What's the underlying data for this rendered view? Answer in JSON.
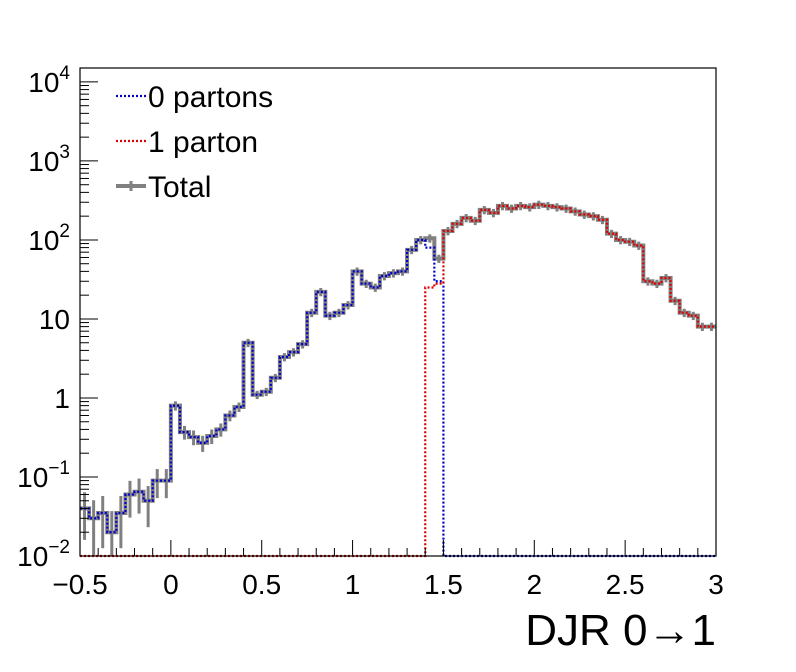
{
  "chart_data": {
    "type": "line",
    "xlabel": "DJR 0→1",
    "ylabel": "",
    "yscale": "log",
    "xlim": [
      -0.5,
      3.0
    ],
    "ylim": [
      0.01,
      15000
    ],
    "grid": false,
    "legend_position": "top-left",
    "bin_edges": [
      -0.5,
      -0.45,
      -0.4,
      -0.35,
      -0.3,
      -0.25,
      -0.2,
      -0.15,
      -0.1,
      -0.05,
      0.0,
      0.05,
      0.1,
      0.15,
      0.2,
      0.25,
      0.3,
      0.35,
      0.4,
      0.45,
      0.5,
      0.55,
      0.6,
      0.65,
      0.7,
      0.75,
      0.8,
      0.85,
      0.9,
      0.95,
      1.0,
      1.05,
      1.1,
      1.15,
      1.2,
      1.25,
      1.3,
      1.35,
      1.4,
      1.45,
      1.5,
      1.55,
      1.6,
      1.65,
      1.7,
      1.75,
      1.8,
      1.85,
      1.9,
      1.95,
      2.0,
      2.05,
      2.1,
      2.15,
      2.2,
      2.25,
      2.3,
      2.35,
      2.4,
      2.45,
      2.5,
      2.55,
      2.6,
      2.65,
      2.7,
      2.75,
      2.8,
      2.85,
      2.9,
      2.95,
      3.0
    ],
    "x_ticks": [
      {
        "value": -0.5,
        "label": "−0.5"
      },
      {
        "value": 0,
        "label": "0"
      },
      {
        "value": 0.5,
        "label": "0.5"
      },
      {
        "value": 1,
        "label": "1"
      },
      {
        "value": 1.5,
        "label": "1.5"
      },
      {
        "value": 2,
        "label": "2"
      },
      {
        "value": 2.5,
        "label": "2.5"
      },
      {
        "value": 3,
        "label": "3"
      }
    ],
    "y_ticks": [
      {
        "value": 0.01,
        "base": "10",
        "exp": "−2",
        "label": ""
      },
      {
        "value": 0.1,
        "base": "10",
        "exp": "−1",
        "label": ""
      },
      {
        "value": 1,
        "base": "",
        "exp": "",
        "label": "1"
      },
      {
        "value": 10,
        "base": "",
        "exp": "",
        "label": "10"
      },
      {
        "value": 100,
        "base": "10",
        "exp": "2",
        "label": ""
      },
      {
        "value": 1000,
        "base": "10",
        "exp": "3",
        "label": ""
      },
      {
        "value": 10000,
        "base": "10",
        "exp": "4",
        "label": ""
      }
    ],
    "series": [
      {
        "name": "0 partons",
        "color": "#0000cc",
        "style": "dotted",
        "values": [
          0.04,
          0.03,
          0.035,
          0.02,
          0.035,
          0.06,
          0.065,
          0.05,
          0.09,
          0.09,
          0.8,
          0.37,
          0.32,
          0.27,
          0.33,
          0.4,
          0.6,
          0.77,
          5.0,
          1.1,
          1.2,
          1.8,
          3.3,
          3.8,
          4.8,
          12,
          22,
          11,
          12,
          15,
          40,
          28,
          25,
          35,
          38,
          40,
          75,
          100,
          80,
          30,
          0,
          0,
          0,
          0,
          0,
          0,
          0,
          0,
          0,
          0,
          0,
          0,
          0,
          0,
          0,
          0,
          0,
          0,
          0,
          0,
          0,
          0,
          0,
          0,
          0,
          0,
          0,
          0,
          0,
          0
        ]
      },
      {
        "name": "1 parton",
        "color": "#dd0000",
        "style": "dotted",
        "values": [
          0,
          0,
          0,
          0,
          0,
          0,
          0,
          0,
          0,
          0,
          0,
          0,
          0,
          0,
          0,
          0,
          0,
          0,
          0,
          0,
          0,
          0,
          0,
          0,
          0,
          0,
          0,
          0,
          0,
          0,
          0,
          0,
          0,
          0,
          0,
          0,
          0,
          0,
          25,
          28,
          130,
          160,
          190,
          175,
          240,
          220,
          270,
          250,
          270,
          260,
          280,
          270,
          260,
          250,
          230,
          210,
          200,
          180,
          120,
          100,
          95,
          85,
          30,
          28,
          33,
          17,
          12,
          11,
          8,
          8
        ]
      },
      {
        "name": "Total",
        "color": "#808080",
        "style": "solid",
        "values": [
          0.04,
          0.03,
          0.035,
          0.02,
          0.035,
          0.06,
          0.065,
          0.05,
          0.09,
          0.09,
          0.8,
          0.37,
          0.32,
          0.27,
          0.33,
          0.4,
          0.6,
          0.77,
          5.0,
          1.1,
          1.2,
          1.8,
          3.3,
          3.8,
          4.8,
          12,
          22,
          11,
          12,
          15,
          40,
          28,
          25,
          35,
          38,
          40,
          75,
          100,
          105,
          58,
          130,
          160,
          190,
          175,
          240,
          220,
          270,
          250,
          270,
          260,
          280,
          270,
          260,
          250,
          230,
          210,
          200,
          180,
          120,
          100,
          95,
          85,
          30,
          28,
          33,
          17,
          12,
          11,
          8,
          8
        ]
      }
    ]
  }
}
